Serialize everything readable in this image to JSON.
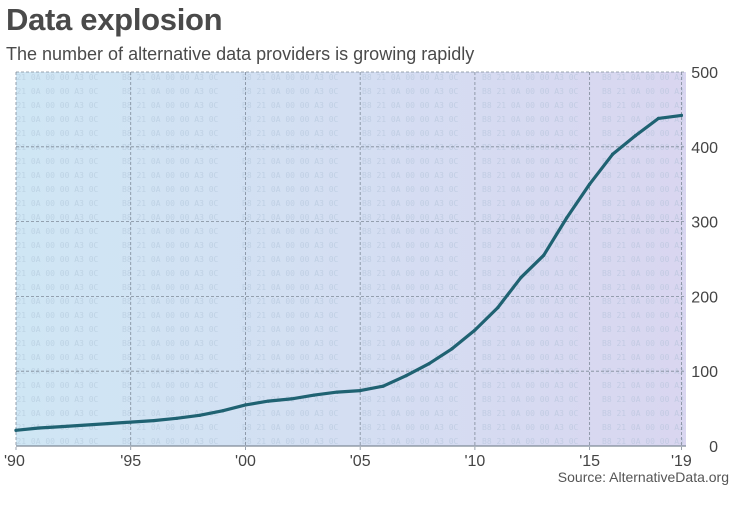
{
  "header": {
    "title": "Data explosion",
    "subtitle": "The number of alternative data providers is growing rapidly"
  },
  "source": "Source: AlternativeData.org",
  "colors": {
    "line": "#1f6272",
    "plot_bg_left": "#cfe6f4",
    "plot_bg_right": "#d9d6f0",
    "grid": "#7f8a98",
    "tick_text": "#444444"
  },
  "chart_data": {
    "type": "line",
    "title": "Data explosion",
    "subtitle": "The number of alternative data providers is growing rapidly",
    "xlabel": "",
    "ylabel": "",
    "x": [
      1990,
      1991,
      1992,
      1993,
      1994,
      1995,
      1996,
      1997,
      1998,
      1999,
      2000,
      2001,
      2002,
      2003,
      2004,
      2005,
      2006,
      2007,
      2008,
      2009,
      2010,
      2011,
      2012,
      2013,
      2014,
      2015,
      2016,
      2017,
      2018,
      2019
    ],
    "values": [
      21,
      24,
      26,
      28,
      30,
      32,
      34,
      37,
      41,
      47,
      55,
      60,
      63,
      68,
      72,
      74,
      80,
      94,
      110,
      130,
      155,
      185,
      225,
      255,
      305,
      350,
      390,
      415,
      438,
      442
    ],
    "xlim": [
      1990,
      2019.2
    ],
    "ylim": [
      0,
      500
    ],
    "x_ticks": [
      {
        "value": 1990,
        "label": "'90"
      },
      {
        "value": 1995,
        "label": "'95"
      },
      {
        "value": 2000,
        "label": "'00"
      },
      {
        "value": 2005,
        "label": "'05"
      },
      {
        "value": 2010,
        "label": "'10"
      },
      {
        "value": 2015,
        "label": "'15"
      },
      {
        "value": 2019,
        "label": "'19"
      }
    ],
    "y_ticks": [
      {
        "value": 0,
        "label": "0"
      },
      {
        "value": 100,
        "label": "100"
      },
      {
        "value": 200,
        "label": "200"
      },
      {
        "value": 300,
        "label": "300"
      },
      {
        "value": 400,
        "label": "400"
      },
      {
        "value": 500,
        "label": "500"
      }
    ],
    "grid": true,
    "y_axis_side": "right",
    "legend": "none"
  }
}
